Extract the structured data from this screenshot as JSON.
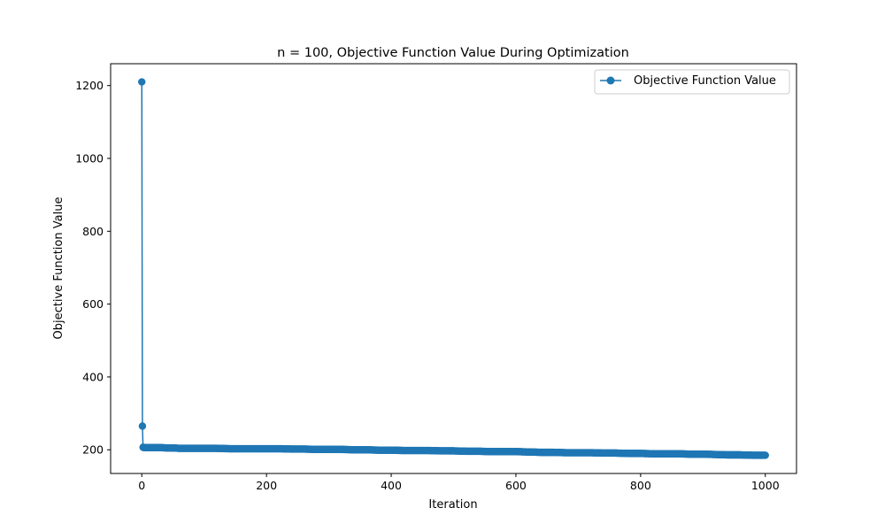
{
  "chart_data": {
    "type": "line",
    "title": "n = 100, Objective Function Value During Optimization",
    "xlabel": "Iteration",
    "ylabel": "Objective Function Value",
    "xlim": [
      -50,
      1050
    ],
    "ylim": [
      135,
      1260
    ],
    "x_ticks": [
      0,
      200,
      400,
      600,
      800,
      1000
    ],
    "y_ticks": [
      200,
      400,
      600,
      800,
      1000,
      1200
    ],
    "legend": {
      "placement": "top-right",
      "entries": [
        "Objective Function Value"
      ]
    },
    "grid": false,
    "colors": {
      "series": "#1f77b4",
      "axes": "#000000",
      "background": "#ffffff"
    },
    "series": [
      {
        "name": "Objective Function Value",
        "marker": "circle",
        "points_x": [
          0,
          1,
          2,
          3,
          5,
          10,
          20,
          30,
          40,
          50,
          60,
          80,
          100,
          120,
          140,
          160,
          180,
          200,
          220,
          240,
          260,
          280,
          300,
          320,
          340,
          360,
          380,
          400,
          420,
          440,
          460,
          480,
          500,
          520,
          540,
          560,
          580,
          600,
          620,
          640,
          660,
          680,
          700,
          720,
          740,
          760,
          780,
          800,
          820,
          840,
          860,
          880,
          900,
          920,
          940,
          960,
          980,
          1000
        ],
        "points_y": [
          1210,
          265,
          207,
          206,
          206,
          206,
          206,
          206,
          205,
          205,
          204,
          204,
          204,
          204,
          203,
          203,
          203,
          203,
          203,
          202,
          202,
          201,
          201,
          201,
          200,
          200,
          199,
          199,
          198,
          198,
          198,
          197,
          197,
          196,
          196,
          195,
          195,
          195,
          194,
          193,
          193,
          192,
          192,
          192,
          191,
          191,
          190,
          190,
          189,
          189,
          189,
          188,
          188,
          187,
          186,
          186,
          185,
          185
        ]
      }
    ]
  }
}
